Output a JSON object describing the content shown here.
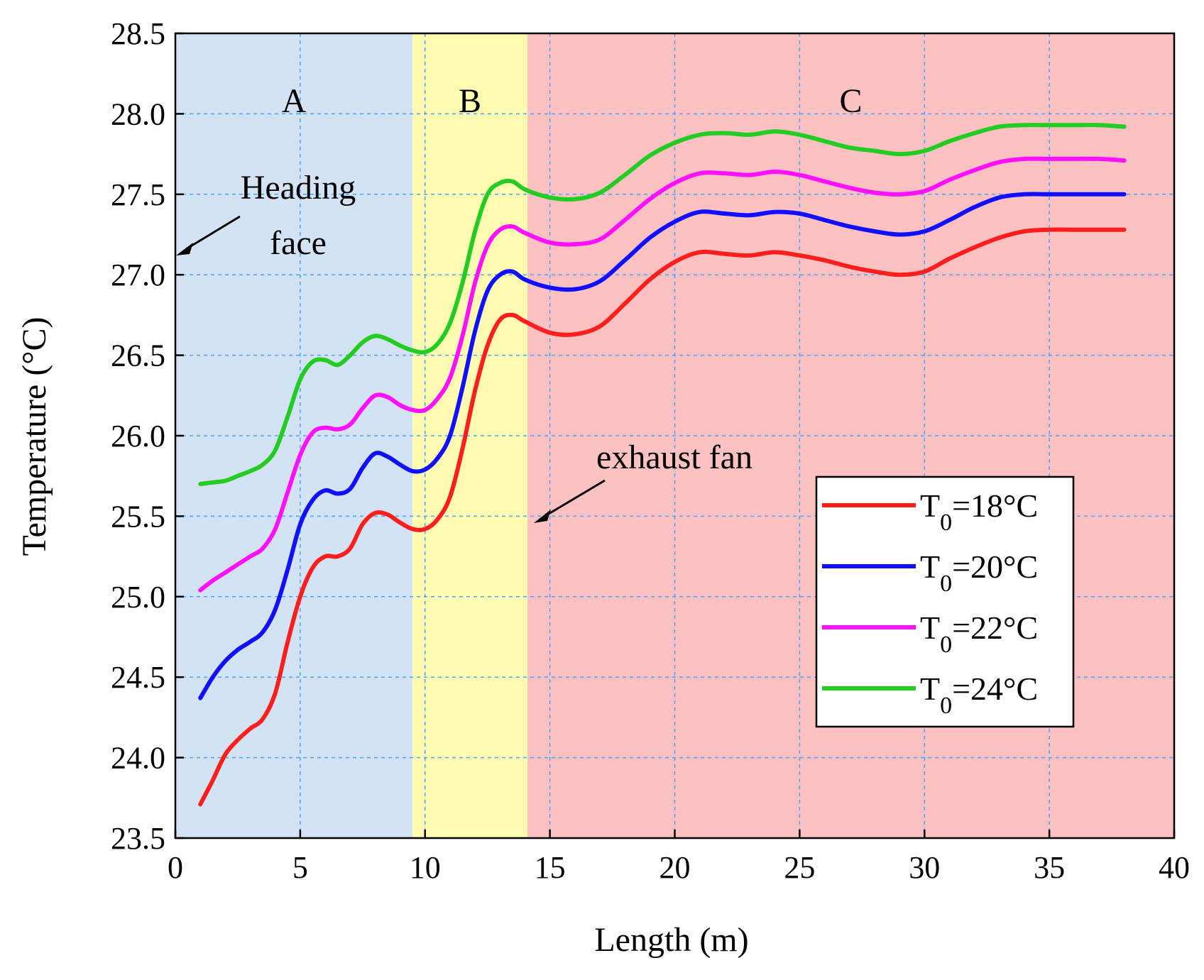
{
  "chart_data": {
    "type": "line",
    "title": "",
    "xlabel": "Length (m)",
    "ylabel": "Temperature (°C)",
    "xlim": [
      0,
      40
    ],
    "ylim": [
      23.5,
      28.5
    ],
    "xticks": [
      0,
      5,
      10,
      15,
      20,
      25,
      30,
      35,
      40
    ],
    "yticks": [
      23.5,
      24.0,
      24.5,
      25.0,
      25.5,
      26.0,
      26.5,
      27.0,
      27.5,
      28.0,
      28.5
    ],
    "ytick_labels": [
      "23.5",
      "24.0",
      "24.5",
      "25.0",
      "25.5",
      "26.0",
      "26.5",
      "27.0",
      "27.5",
      "28.0",
      "28.5"
    ],
    "xtick_labels": [
      "0",
      "5",
      "10",
      "15",
      "20",
      "25",
      "30",
      "35",
      "40"
    ],
    "grid": true,
    "legend_position": "lower-right",
    "zones": [
      {
        "label": "A",
        "x_start": 0,
        "x_end": 9.5,
        "color": "#d4e3f4"
      },
      {
        "label": "B",
        "x_start": 9.5,
        "x_end": 14.1,
        "color": "#fffcb1"
      },
      {
        "label": "C",
        "x_start": 14.1,
        "x_end": 40,
        "color": "#fdc1c1"
      }
    ],
    "x": [
      1,
      1.5,
      2,
      2.5,
      3,
      3.5,
      4,
      4.5,
      5,
      5.5,
      6,
      6.5,
      7,
      7.5,
      8,
      8.5,
      9,
      9.5,
      10,
      10.5,
      11,
      11.5,
      12,
      12.5,
      13,
      13.5,
      14,
      15,
      16,
      17,
      18,
      19,
      20,
      21,
      22,
      23,
      24,
      25,
      26,
      27,
      28,
      29,
      30,
      31,
      32,
      33,
      34,
      35,
      36,
      37,
      38
    ],
    "series": [
      {
        "name": "T0=18°C",
        "label_base": "T",
        "label_sub": "0",
        "label_rest": "=18°C",
        "color": "#ff1e1e",
        "values": [
          23.71,
          23.86,
          24.02,
          24.11,
          24.18,
          24.24,
          24.4,
          24.72,
          25.0,
          25.18,
          25.25,
          25.25,
          25.3,
          25.45,
          25.52,
          25.51,
          25.46,
          25.42,
          25.42,
          25.48,
          25.62,
          25.92,
          26.28,
          26.56,
          26.72,
          26.75,
          26.71,
          26.64,
          26.63,
          26.68,
          26.82,
          26.97,
          27.08,
          27.14,
          27.13,
          27.12,
          27.14,
          27.12,
          27.09,
          27.05,
          27.02,
          27.0,
          27.02,
          27.1,
          27.17,
          27.23,
          27.27,
          27.28,
          27.28,
          27.28,
          27.28
        ]
      },
      {
        "name": "T0=20°C",
        "label_base": "T",
        "label_sub": "0",
        "label_rest": "=20°C",
        "color": "#1010ff",
        "values": [
          24.37,
          24.5,
          24.6,
          24.67,
          24.72,
          24.78,
          24.92,
          25.17,
          25.45,
          25.6,
          25.66,
          25.64,
          25.67,
          25.8,
          25.89,
          25.87,
          25.82,
          25.78,
          25.79,
          25.86,
          26.0,
          26.3,
          26.65,
          26.9,
          27.0,
          27.02,
          26.97,
          26.92,
          26.91,
          26.96,
          27.09,
          27.23,
          27.33,
          27.39,
          27.38,
          27.37,
          27.39,
          27.38,
          27.34,
          27.3,
          27.27,
          27.25,
          27.27,
          27.34,
          27.42,
          27.48,
          27.5,
          27.5,
          27.5,
          27.5,
          27.5
        ]
      },
      {
        "name": "T0=22°C",
        "label_base": "T",
        "label_sub": "0",
        "label_rest": "=22°C",
        "color": "#ff10ff",
        "values": [
          25.04,
          25.1,
          25.15,
          25.2,
          25.25,
          25.3,
          25.42,
          25.65,
          25.88,
          26.02,
          26.05,
          26.04,
          26.07,
          26.17,
          26.25,
          26.24,
          26.19,
          26.16,
          26.16,
          26.23,
          26.36,
          26.62,
          26.95,
          27.18,
          27.28,
          27.3,
          27.26,
          27.2,
          27.19,
          27.22,
          27.34,
          27.47,
          27.57,
          27.63,
          27.63,
          27.62,
          27.64,
          27.62,
          27.58,
          27.54,
          27.51,
          27.5,
          27.52,
          27.59,
          27.65,
          27.7,
          27.72,
          27.72,
          27.72,
          27.72,
          27.71
        ]
      },
      {
        "name": "T0=24°C",
        "label_base": "T",
        "label_sub": "0",
        "label_rest": "=24°C",
        "color": "#22cc22",
        "values": [
          25.7,
          25.71,
          25.72,
          25.75,
          25.78,
          25.82,
          25.91,
          26.12,
          26.35,
          26.46,
          26.47,
          26.44,
          26.5,
          26.58,
          26.62,
          26.6,
          26.56,
          26.53,
          26.52,
          26.57,
          26.7,
          26.95,
          27.27,
          27.5,
          27.57,
          27.58,
          27.53,
          27.48,
          27.47,
          27.51,
          27.62,
          27.74,
          27.82,
          27.87,
          27.88,
          27.87,
          27.89,
          27.87,
          27.83,
          27.79,
          27.77,
          27.75,
          27.77,
          27.83,
          27.88,
          27.92,
          27.93,
          27.93,
          27.93,
          27.93,
          27.92
        ]
      }
    ],
    "annotations": [
      {
        "text_line1": "Heading",
        "text_line2": "face",
        "points_to_x": 0,
        "points_to_y": 27.1
      },
      {
        "text": "exhaust fan",
        "points_to_x": 14.1,
        "points_to_y": 25.45
      }
    ]
  }
}
